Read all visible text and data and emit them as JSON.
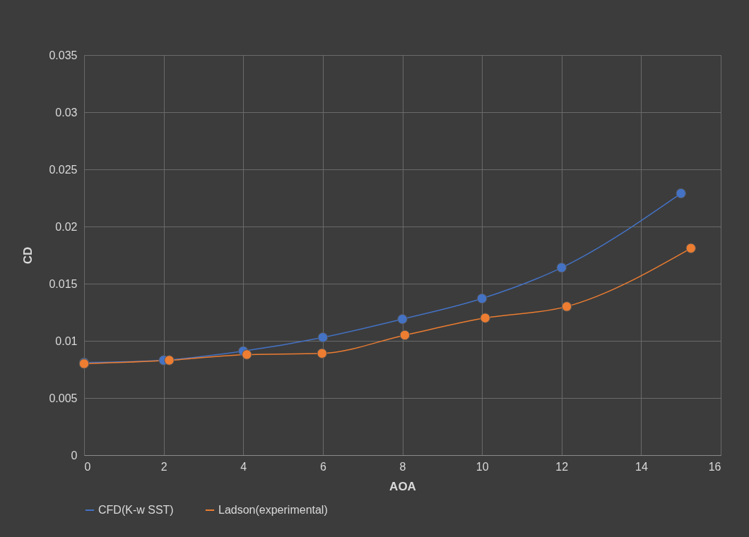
{
  "chart_data": {
    "type": "line",
    "xlabel": "AOA",
    "ylabel": "CD",
    "xlim": [
      0,
      16
    ],
    "xticks": [
      0,
      2,
      4,
      6,
      8,
      10,
      12,
      14,
      16
    ],
    "ylim": [
      0,
      0.035
    ],
    "yticks": [
      0,
      0.005,
      0.01,
      0.015,
      0.02,
      0.025,
      0.03,
      0.035
    ],
    "grid": true,
    "legend": "bottom",
    "marker": "circle",
    "line_style": "solid",
    "series": [
      {
        "name": "CFD(K-w SST)",
        "color": "#4472c4",
        "x": [
          0,
          2,
          4,
          6,
          8,
          10,
          12,
          15
        ],
        "values": [
          0.0081,
          0.0083,
          0.0091,
          0.0103,
          0.0119,
          0.0137,
          0.0164,
          0.0229
        ]
      },
      {
        "name": "Ladson(experimental)",
        "color": "#ed7d31",
        "x": [
          0,
          2.14,
          4.09,
          5.98,
          8.06,
          10.08,
          12.13,
          15.25
        ],
        "values": [
          0.008,
          0.0083,
          0.0088,
          0.0089,
          0.0105,
          0.012,
          0.013,
          0.0181
        ]
      }
    ]
  }
}
